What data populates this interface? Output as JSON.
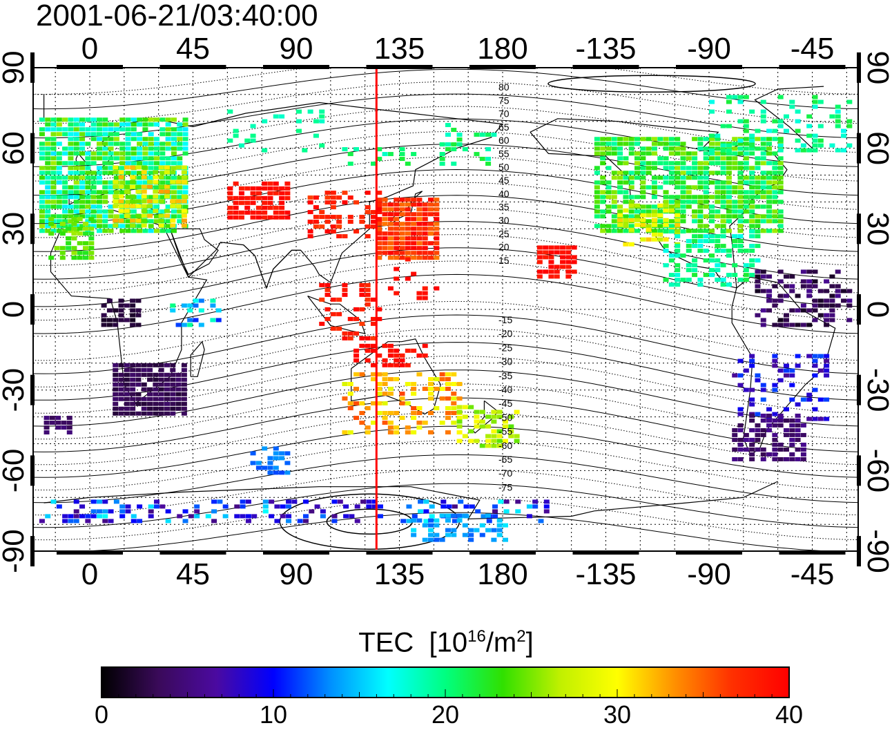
{
  "timestamp": "2001-06-21/03:40:00",
  "colorbar": {
    "title_main": "TEC",
    "title_unit_prefix": "[10",
    "title_unit_exp": "16",
    "title_unit_mid": "/m",
    "title_unit_exp2": "2",
    "title_unit_suffix": "]",
    "min": 0,
    "max": 40,
    "tick_labels": [
      "0",
      "10",
      "20",
      "30",
      "40"
    ],
    "colors": [
      "#000000",
      "#3a0a5a",
      "#4b0aa0",
      "#0000ff",
      "#0090ff",
      "#00ffff",
      "#00ff80",
      "#30e000",
      "#c0f000",
      "#ffff00",
      "#ff9000",
      "#ff3000",
      "#ff0000"
    ]
  },
  "map": {
    "top_lon_labels": [
      "0",
      "45",
      "90",
      "135",
      "180",
      "-135",
      "-90",
      "-45"
    ],
    "bottom_lon_labels": [
      "0",
      "45",
      "90",
      "135",
      "180",
      "-135",
      "-90",
      "-45"
    ],
    "left_lat_labels": [
      "90",
      "60",
      "30",
      "0",
      "-30",
      "-60",
      "-90"
    ],
    "right_lat_labels": [
      "90",
      "60",
      "30",
      "0",
      "-30",
      "-60",
      "-90"
    ],
    "contour_labels_north": [
      "80",
      "75",
      "70",
      "65",
      "60",
      "55",
      "50",
      "45",
      "40",
      "35",
      "30",
      "25",
      "20",
      "15"
    ],
    "contour_labels_south": [
      "-15",
      "-20",
      "-25",
      "-30",
      "-35",
      "-40",
      "-45",
      "-50",
      "-55",
      "-60",
      "-65",
      "-70",
      "-75"
    ],
    "terminator_longitude": 125,
    "terminator_color": "#ff0000"
  }
}
